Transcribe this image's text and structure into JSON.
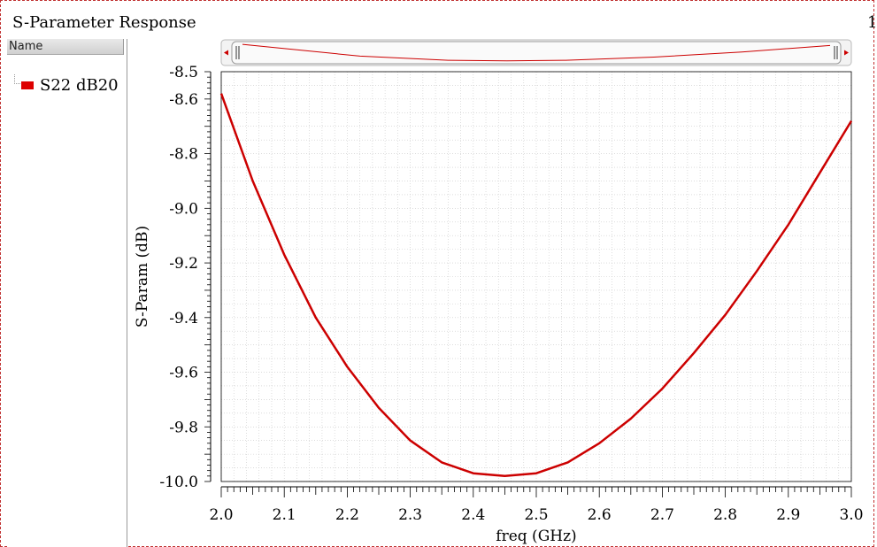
{
  "window": {
    "title": "S-Parameter Response",
    "page_number": "1"
  },
  "left_panel": {
    "header": "Name",
    "traces": [
      {
        "label": "S22 dB20",
        "color": "#dd0000"
      }
    ]
  },
  "colors": {
    "trace": "#cc0000",
    "grid": "#c8c8c8",
    "frame_border": "#c03030"
  },
  "chart_data": {
    "type": "line",
    "title": "",
    "xlabel": "freq (GHz)",
    "ylabel": "S-Param (dB)",
    "xlim": [
      2.0,
      3.0
    ],
    "ylim": [
      -10.0,
      -8.5
    ],
    "x_ticks": [
      "2.0",
      "2.1",
      "2.2",
      "2.3",
      "2.4",
      "2.5",
      "2.6",
      "2.7",
      "2.8",
      "2.9",
      "3.0"
    ],
    "y_ticks": [
      "-8.5",
      "-8.6",
      "-8.8",
      "-9.0",
      "-9.2",
      "-9.4",
      "-9.6",
      "-9.8",
      "-10.0"
    ],
    "grid": true,
    "series": [
      {
        "name": "S22 dB20",
        "x": [
          2.0,
          2.05,
          2.1,
          2.15,
          2.2,
          2.25,
          2.3,
          2.35,
          2.4,
          2.45,
          2.5,
          2.55,
          2.6,
          2.65,
          2.7,
          2.75,
          2.8,
          2.85,
          2.9,
          2.95,
          3.0
        ],
        "y": [
          -8.58,
          -8.9,
          -9.17,
          -9.4,
          -9.58,
          -9.73,
          -9.85,
          -9.93,
          -9.97,
          -9.98,
          -9.97,
          -9.93,
          -9.86,
          -9.77,
          -9.66,
          -9.53,
          -9.39,
          -9.23,
          -9.06,
          -8.87,
          -8.68
        ]
      }
    ],
    "overview": {
      "x": [
        2.0,
        2.2,
        2.35,
        2.45,
        2.55,
        2.7,
        2.85,
        3.0
      ],
      "y": [
        -8.58,
        -9.58,
        -9.93,
        -9.98,
        -9.93,
        -9.66,
        -9.23,
        -8.68
      ]
    }
  }
}
